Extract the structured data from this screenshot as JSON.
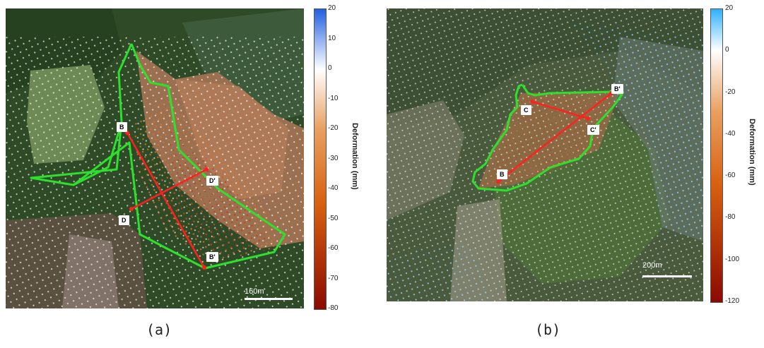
{
  "panels": [
    {
      "caption": "(a)",
      "scale_label": "160m",
      "colorbar": {
        "title": "Deformation (mm)",
        "ticks": [
          "20",
          "10",
          "0",
          "-10",
          "-20",
          "-30",
          "-40",
          "-50",
          "-60",
          "-70",
          "-80"
        ],
        "colors": [
          "#2060e0",
          "#ffffff",
          "#e8a060",
          "#d86010",
          "#8a0a00"
        ]
      },
      "labels": [
        "B",
        "D'",
        "D",
        "B'"
      ]
    },
    {
      "caption": "(b)",
      "scale_label": "200m",
      "colorbar": {
        "title": "Deformation (mm)",
        "ticks": [
          "20",
          "0",
          "-20",
          "-40",
          "-60",
          "-80",
          "-100",
          "-120"
        ],
        "colors": [
          "#30b0ff",
          "#ffffff",
          "#e8a060",
          "#d86010",
          "#8a0a00"
        ]
      },
      "labels": [
        "B'",
        "C",
        "C'",
        "B"
      ]
    }
  ],
  "colors": {
    "boundary": "#2ee02e",
    "profile": "#ff2020",
    "points_stable": "#ffffff",
    "points_subsiding": "#e07020"
  }
}
